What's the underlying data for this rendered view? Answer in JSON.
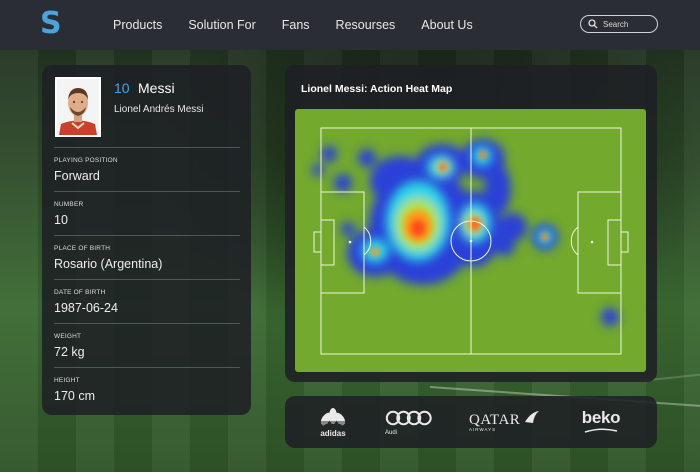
{
  "nav": {
    "logo": "S",
    "items": [
      "Products",
      "Solution For",
      "Fans",
      "Resourses",
      "About Us"
    ],
    "search_placeholder": "Search"
  },
  "player": {
    "number": "10",
    "name": "Messi",
    "full_name": "Lionel Andrés Messi",
    "fields": [
      {
        "label": "PLAYING POSITION",
        "value": "Forward"
      },
      {
        "label": "NUMBER",
        "value": "10"
      },
      {
        "label": "PLACE OF BIRTH",
        "value": "Rosario (Argentina)"
      },
      {
        "label": "DATE OF BIRTH",
        "value": "1987-06-24"
      },
      {
        "label": "WEIGHT",
        "value": "72 kg"
      },
      {
        "label": "HEIGHT",
        "value": "170 cm"
      }
    ]
  },
  "heatmap": {
    "title": "Lionel Messi: Action Heat Map",
    "colors": {
      "pitch": "#73a92d",
      "low": "#2b3fd8",
      "mid": "#2ad6e8",
      "high": "#ff4b1f"
    }
  },
  "sponsors": {
    "adidas": "adidas",
    "audi": "Audi",
    "qatar_main": "QATAR",
    "qatar_sub": "AIRWAYS",
    "beko": "beko"
  },
  "colors": {
    "accent": "#4aa3df",
    "nav_bg": "#2a2d33",
    "card_bg": "#1e2024"
  }
}
